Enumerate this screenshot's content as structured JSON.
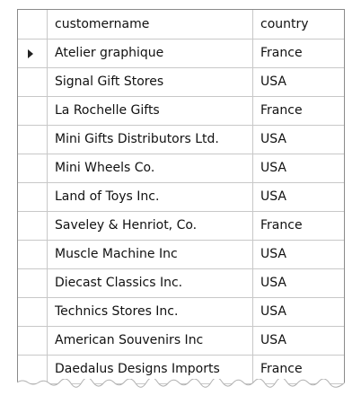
{
  "table": {
    "columns": [
      "customername",
      "country"
    ],
    "rows": [
      {
        "customername": "Atelier graphique",
        "country": "France",
        "current": true
      },
      {
        "customername": "Signal Gift Stores",
        "country": "USA"
      },
      {
        "customername": "La Rochelle Gifts",
        "country": "France"
      },
      {
        "customername": "Mini Gifts Distributors Ltd.",
        "country": "USA"
      },
      {
        "customername": "Mini Wheels Co.",
        "country": "USA"
      },
      {
        "customername": "Land of Toys Inc.",
        "country": "USA"
      },
      {
        "customername": "Saveley & Henriot, Co.",
        "country": "France"
      },
      {
        "customername": "Muscle Machine Inc",
        "country": "USA"
      },
      {
        "customername": "Diecast Classics Inc.",
        "country": "USA"
      },
      {
        "customername": "Technics Stores Inc.",
        "country": "USA"
      },
      {
        "customername": "American Souvenirs Inc",
        "country": "USA"
      },
      {
        "customername": "Daedalus Designs Imports",
        "country": "France"
      }
    ],
    "current_row_icon": "caret-right-icon"
  }
}
